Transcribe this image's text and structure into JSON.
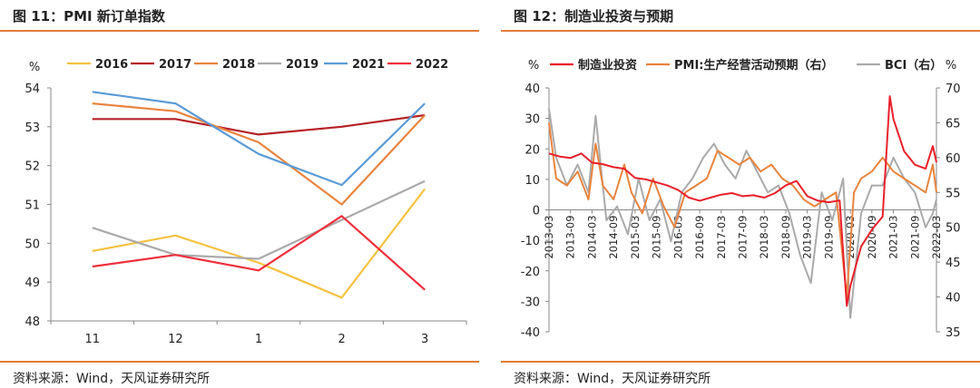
{
  "chart_data": [
    {
      "type": "line",
      "title": "图 11：PMI 新订单指数",
      "source": "资料来源：Wind，天风证券研究所",
      "ylabel": "%",
      "categories": [
        "11",
        "12",
        "1",
        "2",
        "3"
      ],
      "ylim": [
        48,
        54
      ],
      "yticks": [
        "48",
        "49",
        "50",
        "51",
        "52",
        "53",
        "54"
      ],
      "legend_position": "top",
      "series": [
        {
          "name": "2016",
          "color": "#f5c242",
          "values": [
            49.8,
            50.2,
            49.5,
            48.6,
            51.4
          ]
        },
        {
          "name": "2017",
          "color": "#b52025",
          "values": [
            53.2,
            53.2,
            52.8,
            53.0,
            53.3
          ]
        },
        {
          "name": "2018",
          "color": "#e8843e",
          "values": [
            53.6,
            53.4,
            52.6,
            51.0,
            53.3
          ]
        },
        {
          "name": "2019",
          "color": "#aaaaaa",
          "values": [
            50.4,
            49.7,
            49.6,
            50.6,
            51.6
          ]
        },
        {
          "name": "2021",
          "color": "#5b9bd5",
          "values": [
            53.9,
            53.6,
            52.3,
            51.5,
            53.6
          ]
        },
        {
          "name": "2022",
          "color": "#ee2f3c",
          "values": [
            49.4,
            49.7,
            49.3,
            50.7,
            48.8
          ]
        }
      ]
    },
    {
      "type": "line",
      "title": "图 12：制造业投资与预期",
      "source": "资料来源：Wind，天风证券研究所",
      "ylabel_left": "%",
      "ylabel_right": "%",
      "ylim_left": [
        -40,
        40
      ],
      "ylim_right": [
        35,
        70
      ],
      "yticks_left": [
        "-40",
        "-30",
        "-20",
        "-10",
        "0",
        "10",
        "20",
        "30",
        "40"
      ],
      "yticks_right": [
        "35",
        "40",
        "45",
        "50",
        "55",
        "60",
        "65",
        "70"
      ],
      "xlim": [
        "2013-03",
        "2022-03"
      ],
      "xticks": [
        "2013-03",
        "2013-09",
        "2014-03",
        "2014-09",
        "2015-03",
        "2015-09",
        "2016-03",
        "2016-09",
        "2017-03",
        "2017-09",
        "2018-03",
        "2018-09",
        "2019-03",
        "2019-09",
        "2020-03",
        "2020-09",
        "2021-03",
        "2021-09",
        "2022-03"
      ],
      "legend_position": "top",
      "series": [
        {
          "name": "制造业投资",
          "axis": "left",
          "color": "#e8202a",
          "x": [
            "2013-03",
            "2013-06",
            "2013-09",
            "2013-12",
            "2014-03",
            "2014-06",
            "2014-09",
            "2014-12",
            "2015-03",
            "2015-06",
            "2015-09",
            "2015-12",
            "2016-03",
            "2016-06",
            "2016-09",
            "2016-12",
            "2017-03",
            "2017-06",
            "2017-09",
            "2017-12",
            "2018-03",
            "2018-06",
            "2018-09",
            "2018-12",
            "2019-03",
            "2019-06",
            "2019-09",
            "2019-12",
            "2020-02",
            "2020-03",
            "2020-06",
            "2020-09",
            "2020-12",
            "2021-02",
            "2021-03",
            "2021-06",
            "2021-09",
            "2021-12",
            "2022-02",
            "2022-03"
          ],
          "y": [
            18.5,
            17.5,
            17.0,
            18.5,
            15.5,
            15.0,
            14.0,
            13.5,
            10.5,
            10.0,
            9.0,
            8.0,
            6.5,
            4.0,
            3.0,
            4.0,
            5.0,
            5.5,
            4.5,
            4.8,
            4.0,
            5.5,
            8.0,
            9.5,
            4.5,
            3.0,
            2.5,
            3.1,
            -31.5,
            -25.0,
            -12.0,
            -6.5,
            -2.2,
            37.3,
            29.8,
            19.2,
            14.8,
            13.5,
            20.9,
            15.6
          ]
        },
        {
          "name": "PMI:生产经营活动预期（右）",
          "axis": "right",
          "color": "#e8843e",
          "x": [
            "2013-03",
            "2013-05",
            "2013-08",
            "2013-11",
            "2014-02",
            "2014-04",
            "2014-06",
            "2014-09",
            "2014-12",
            "2015-02",
            "2015-05",
            "2015-08",
            "2015-11",
            "2016-02",
            "2016-05",
            "2016-08",
            "2016-11",
            "2017-02",
            "2017-05",
            "2017-08",
            "2017-11",
            "2018-02",
            "2018-05",
            "2018-08",
            "2018-11",
            "2019-02",
            "2019-05",
            "2019-08",
            "2019-11",
            "2020-02",
            "2020-04",
            "2020-06",
            "2020-09",
            "2020-12",
            "2021-03",
            "2021-06",
            "2021-09",
            "2021-12",
            "2022-02",
            "2022-03"
          ],
          "y": [
            65,
            57,
            56,
            58,
            54,
            62,
            56,
            54,
            59,
            55,
            52,
            57,
            53,
            50,
            55,
            56,
            57,
            61,
            60,
            59,
            60,
            58,
            59,
            57,
            56,
            54,
            53,
            54,
            55,
            40,
            55,
            57,
            58,
            60,
            58,
            57,
            56,
            55,
            59,
            55
          ]
        },
        {
          "name": "BCI（右）",
          "axis": "right",
          "color": "#aaaaaa",
          "x": [
            "2013-03",
            "2013-05",
            "2013-08",
            "2013-11",
            "2014-02",
            "2014-04",
            "2014-07",
            "2014-10",
            "2015-01",
            "2015-04",
            "2015-07",
            "2015-10",
            "2016-01",
            "2016-04",
            "2016-07",
            "2016-10",
            "2017-01",
            "2017-04",
            "2017-07",
            "2017-10",
            "2018-01",
            "2018-04",
            "2018-07",
            "2018-10",
            "2019-01",
            "2019-04",
            "2019-07",
            "2019-10",
            "2020-01",
            "2020-03",
            "2020-06",
            "2020-09",
            "2020-12",
            "2021-03",
            "2021-06",
            "2021-09",
            "2021-12",
            "2022-02",
            "2022-03"
          ],
          "y": [
            67,
            60,
            56,
            59,
            55,
            66,
            51,
            53,
            49,
            57,
            51,
            54,
            48,
            55,
            57,
            60,
            62,
            59,
            57,
            61,
            58,
            55,
            56,
            52,
            46,
            42,
            55,
            51,
            57,
            37,
            52,
            56,
            56,
            60,
            57,
            55,
            50,
            52,
            54
          ]
        }
      ]
    }
  ]
}
